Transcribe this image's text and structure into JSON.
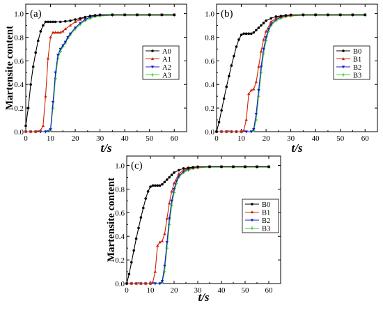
{
  "colors": {
    "series": [
      "#000000",
      "#cc2200",
      "#1a1acc",
      "#33cc33"
    ],
    "axis": "#000000"
  },
  "chart_data": [
    {
      "type": "line",
      "panel_label": "(a)",
      "xlabel": "t/s",
      "ylabel": "Martensite content",
      "xlim": [
        0,
        65
      ],
      "ylim": [
        0,
        1.08
      ],
      "xticks": [
        "0",
        "10",
        "20",
        "30",
        "40",
        "50",
        "60"
      ],
      "yticks": [
        "0.0",
        "0.2",
        "0.4",
        "0.6",
        "0.8",
        "1.0"
      ],
      "grid": false,
      "legend_position": "right",
      "series": [
        {
          "name": "A0",
          "x": [
            0,
            1,
            2,
            3,
            4,
            5,
            6,
            7,
            8,
            9,
            10,
            11,
            12,
            14,
            16,
            18,
            20,
            22,
            24,
            26,
            28,
            30,
            35,
            40,
            45,
            50,
            55,
            60
          ],
          "y": [
            0.05,
            0.2,
            0.4,
            0.55,
            0.67,
            0.77,
            0.85,
            0.9,
            0.93,
            0.93,
            0.93,
            0.93,
            0.93,
            0.93,
            0.935,
            0.94,
            0.95,
            0.96,
            0.97,
            0.98,
            0.985,
            0.99,
            0.99,
            0.99,
            0.99,
            0.99,
            0.99,
            0.99
          ]
        },
        {
          "name": "A1",
          "x": [
            0,
            2,
            4,
            6,
            7,
            8,
            9,
            10,
            11,
            12,
            13,
            14,
            15,
            16,
            18,
            20,
            22,
            24,
            26,
            28,
            30,
            35,
            40,
            45,
            50,
            55,
            60
          ],
          "y": [
            0,
            0,
            0,
            0.01,
            0.05,
            0.3,
            0.62,
            0.8,
            0.84,
            0.84,
            0.84,
            0.84,
            0.85,
            0.87,
            0.9,
            0.93,
            0.95,
            0.97,
            0.98,
            0.985,
            0.99,
            0.99,
            0.99,
            0.99,
            0.99,
            0.99,
            0.99
          ]
        },
        {
          "name": "A2",
          "x": [
            0,
            2,
            4,
            6,
            8,
            10,
            11,
            12,
            13,
            14,
            15,
            16,
            17,
            18,
            20,
            22,
            24,
            26,
            28,
            30,
            35,
            40,
            45,
            50,
            55,
            60
          ],
          "y": [
            0,
            0,
            0,
            0,
            0,
            0.02,
            0.25,
            0.5,
            0.65,
            0.7,
            0.73,
            0.76,
            0.8,
            0.83,
            0.88,
            0.92,
            0.95,
            0.97,
            0.98,
            0.985,
            0.99,
            0.99,
            0.99,
            0.99,
            0.99,
            0.99
          ]
        },
        {
          "name": "A3",
          "x": [
            0,
            2,
            4,
            6,
            8,
            10,
            11,
            12,
            13,
            14,
            15,
            16,
            17,
            18,
            20,
            22,
            24,
            26,
            28,
            30,
            35,
            40,
            45,
            50,
            55,
            60
          ],
          "y": [
            0,
            0,
            0,
            0,
            0,
            0.01,
            0.2,
            0.45,
            0.62,
            0.68,
            0.72,
            0.75,
            0.79,
            0.82,
            0.87,
            0.91,
            0.94,
            0.96,
            0.975,
            0.98,
            0.985,
            0.985,
            0.985,
            0.985,
            0.985,
            0.985
          ]
        }
      ]
    },
    {
      "type": "line",
      "panel_label": "(b)",
      "xlabel": "t/s",
      "ylabel": "",
      "xlim": [
        0,
        65
      ],
      "ylim": [
        0,
        1.08
      ],
      "xticks": [
        "0",
        "10",
        "20",
        "30",
        "40",
        "50",
        "60"
      ],
      "yticks": [
        "0.0",
        "0.2",
        "0.4",
        "0.6",
        "0.8",
        "1.0"
      ],
      "grid": false,
      "legend_position": "right",
      "series": [
        {
          "name": "B0",
          "x": [
            0,
            1,
            2,
            3,
            4,
            5,
            6,
            7,
            8,
            9,
            10,
            11,
            12,
            13,
            14,
            15,
            16,
            17,
            18,
            19,
            20,
            22,
            24,
            26,
            28,
            30,
            35,
            40,
            45,
            50,
            55,
            60
          ],
          "y": [
            0,
            0.08,
            0.18,
            0.28,
            0.38,
            0.47,
            0.56,
            0.64,
            0.72,
            0.78,
            0.82,
            0.83,
            0.83,
            0.83,
            0.83,
            0.84,
            0.86,
            0.88,
            0.9,
            0.92,
            0.94,
            0.96,
            0.975,
            0.98,
            0.985,
            0.99,
            0.99,
            0.99,
            0.99,
            0.99,
            0.99,
            0.99
          ]
        },
        {
          "name": "B1",
          "x": [
            0,
            2,
            4,
            6,
            8,
            10,
            11,
            12,
            13,
            14,
            15,
            16,
            17,
            18,
            19,
            20,
            22,
            24,
            26,
            28,
            30,
            35,
            40,
            45,
            50,
            55,
            60
          ],
          "y": [
            0,
            0,
            0,
            0,
            0,
            0,
            0.01,
            0.1,
            0.32,
            0.35,
            0.36,
            0.42,
            0.55,
            0.68,
            0.78,
            0.85,
            0.93,
            0.96,
            0.975,
            0.98,
            0.985,
            0.99,
            0.99,
            0.99,
            0.99,
            0.99,
            0.99
          ]
        },
        {
          "name": "B2",
          "x": [
            0,
            2,
            4,
            6,
            8,
            10,
            12,
            14,
            15,
            16,
            17,
            18,
            19,
            20,
            21,
            22,
            24,
            26,
            28,
            30,
            35,
            40,
            45,
            50,
            55,
            60
          ],
          "y": [
            0,
            0,
            0,
            0,
            0,
            0,
            0,
            0,
            0.02,
            0.15,
            0.35,
            0.55,
            0.7,
            0.8,
            0.87,
            0.91,
            0.95,
            0.97,
            0.98,
            0.985,
            0.99,
            0.99,
            0.99,
            0.99,
            0.99,
            0.99
          ]
        },
        {
          "name": "B3",
          "x": [
            0,
            2,
            4,
            6,
            8,
            10,
            12,
            14,
            15,
            16,
            17,
            18,
            19,
            20,
            21,
            22,
            24,
            26,
            28,
            30,
            35,
            40,
            45,
            50,
            55,
            60
          ],
          "y": [
            0,
            0,
            0,
            0,
            0,
            0,
            0,
            0,
            0.01,
            0.1,
            0.3,
            0.5,
            0.66,
            0.77,
            0.85,
            0.9,
            0.94,
            0.96,
            0.975,
            0.98,
            0.985,
            0.985,
            0.985,
            0.985,
            0.985,
            0.985
          ]
        }
      ]
    },
    {
      "type": "line",
      "panel_label": "(c)",
      "xlabel": "t/s",
      "ylabel": "Martensite content",
      "xlim": [
        0,
        65
      ],
      "ylim": [
        0,
        1.08
      ],
      "xticks": [
        "0",
        "10",
        "20",
        "30",
        "40",
        "50",
        "60"
      ],
      "yticks": [
        "0.0",
        "0.2",
        "0.4",
        "0.6",
        "0.8",
        "1.0"
      ],
      "grid": false,
      "legend_position": "right",
      "series": [
        {
          "name": "B0",
          "x": [
            0,
            1,
            2,
            3,
            4,
            5,
            6,
            7,
            8,
            9,
            10,
            11,
            12,
            13,
            14,
            15,
            16,
            17,
            18,
            19,
            20,
            22,
            24,
            26,
            28,
            30,
            35,
            40,
            45,
            50,
            55,
            60
          ],
          "y": [
            0,
            0.08,
            0.18,
            0.28,
            0.38,
            0.47,
            0.56,
            0.64,
            0.72,
            0.78,
            0.82,
            0.83,
            0.83,
            0.83,
            0.83,
            0.84,
            0.86,
            0.88,
            0.9,
            0.92,
            0.94,
            0.96,
            0.975,
            0.98,
            0.985,
            0.99,
            0.99,
            0.99,
            0.99,
            0.99,
            0.99,
            0.99
          ]
        },
        {
          "name": "B1",
          "x": [
            0,
            2,
            4,
            6,
            8,
            10,
            11,
            12,
            13,
            14,
            15,
            16,
            17,
            18,
            19,
            20,
            22,
            24,
            26,
            28,
            30,
            35,
            40,
            45,
            50,
            55,
            60
          ],
          "y": [
            0,
            0,
            0,
            0,
            0,
            0,
            0.01,
            0.1,
            0.32,
            0.35,
            0.36,
            0.42,
            0.55,
            0.68,
            0.78,
            0.85,
            0.93,
            0.96,
            0.975,
            0.98,
            0.985,
            0.99,
            0.99,
            0.99,
            0.99,
            0.99,
            0.99
          ]
        },
        {
          "name": "B2",
          "x": [
            0,
            2,
            4,
            6,
            8,
            10,
            12,
            14,
            15,
            16,
            17,
            18,
            19,
            20,
            21,
            22,
            24,
            26,
            28,
            30,
            35,
            40,
            45,
            50,
            55,
            60
          ],
          "y": [
            0,
            0,
            0,
            0,
            0,
            0,
            0,
            0,
            0.02,
            0.15,
            0.35,
            0.55,
            0.7,
            0.8,
            0.87,
            0.91,
            0.95,
            0.97,
            0.98,
            0.985,
            0.99,
            0.99,
            0.99,
            0.99,
            0.99,
            0.99
          ]
        },
        {
          "name": "B3",
          "x": [
            0,
            2,
            4,
            6,
            8,
            10,
            12,
            14,
            15,
            16,
            17,
            18,
            19,
            20,
            21,
            22,
            24,
            26,
            28,
            30,
            35,
            40,
            45,
            50,
            55,
            60
          ],
          "y": [
            0,
            0,
            0,
            0,
            0,
            0,
            0,
            0,
            0.01,
            0.1,
            0.3,
            0.5,
            0.66,
            0.77,
            0.85,
            0.9,
            0.94,
            0.96,
            0.975,
            0.98,
            0.985,
            0.985,
            0.985,
            0.985,
            0.985,
            0.985
          ]
        }
      ]
    }
  ]
}
